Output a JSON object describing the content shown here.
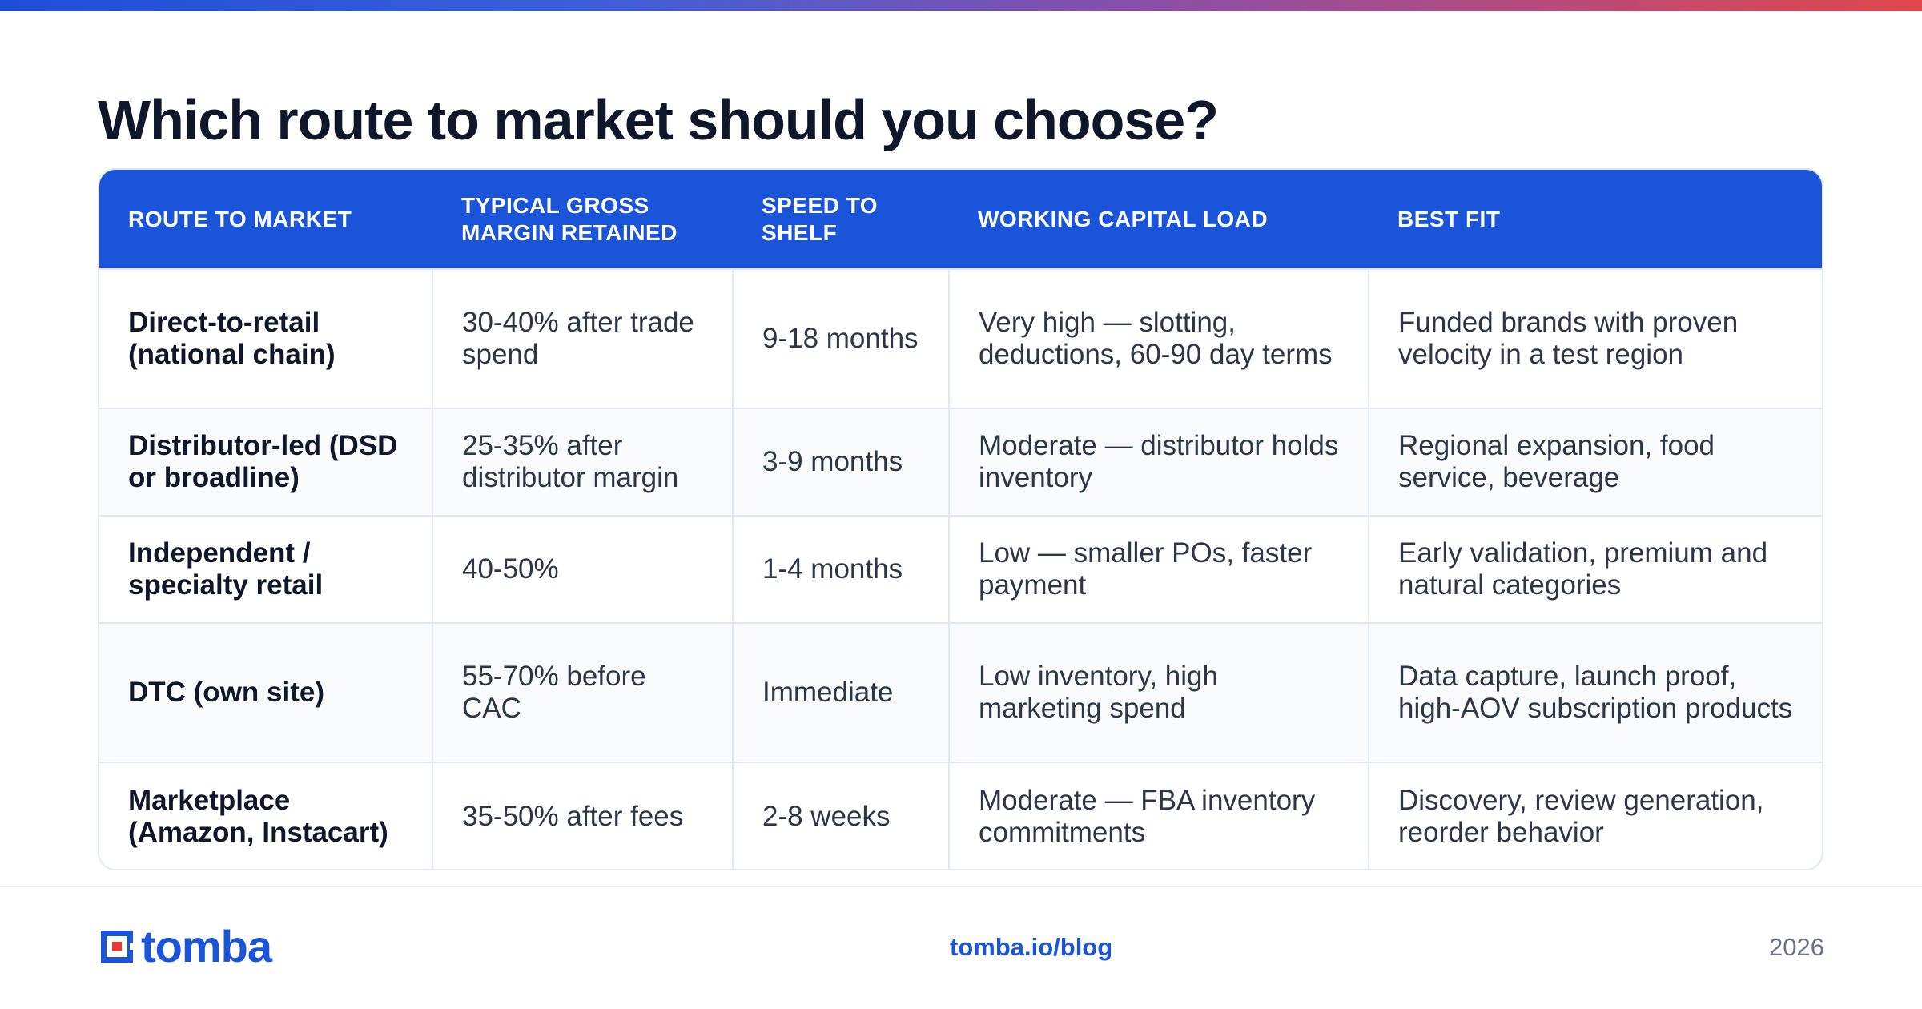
{
  "header": {
    "title": "Which route to market should you choose?"
  },
  "colors": {
    "accent": "#1a54d9",
    "title": "#0f172a",
    "logo_red": "#e53935"
  },
  "table": {
    "columns": [
      "ROUTE TO MARKET",
      "TYPICAL GROSS MARGIN RETAINED",
      "SPEED TO SHELF",
      "WORKING CAPITAL LOAD",
      "BEST FIT"
    ],
    "rows": [
      [
        "Direct-to-retail (national chain)",
        "30-40% after trade spend",
        "9-18 months",
        "Very high — slotting, deductions, 60-90 day terms",
        "Funded brands with proven velocity in a test region"
      ],
      [
        "Distributor-led (DSD or broadline)",
        "25-35% after distributor margin",
        "3-9 months",
        "Moderate — distributor holds inventory",
        "Regional expansion, food service, beverage"
      ],
      [
        "Independent / specialty retail",
        "40-50%",
        "1-4 months",
        "Low — smaller POs, faster payment",
        "Early validation, premium and natural categories"
      ],
      [
        "DTC (own site)",
        "55-70% before CAC",
        "Immediate",
        "Low inventory, high marketing spend",
        "Data capture, launch proof, high-AOV subscription products"
      ],
      [
        "Marketplace (Amazon, Instacart)",
        "35-50% after fees",
        "2-8 weeks",
        "Moderate — FBA inventory commitments",
        "Discovery, review generation, reorder behavior"
      ]
    ]
  },
  "footer": {
    "logo_text": "tomba",
    "logo_icon": "tomba-logo-icon",
    "link": "tomba.io/blog",
    "year": "2026"
  }
}
